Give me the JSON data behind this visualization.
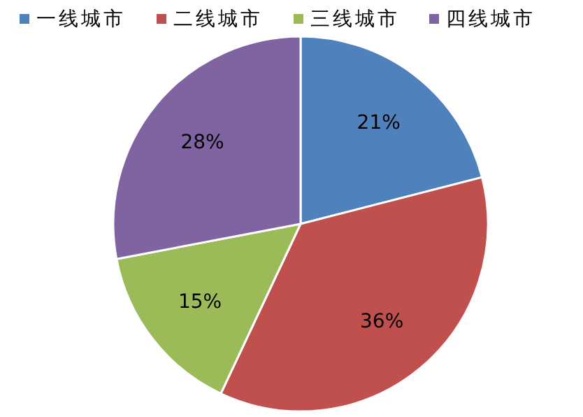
{
  "chart_data": {
    "type": "pie",
    "categories": [
      "一线城市",
      "二线城市",
      "三线城市",
      "四线城市"
    ],
    "values": [
      21,
      36,
      15,
      28
    ],
    "colors": [
      "#4f81bd",
      "#c0504d",
      "#9bbb59",
      "#8064a2"
    ],
    "value_labels": [
      "21%",
      "36%",
      "15%",
      "28%"
    ],
    "legend": "top"
  }
}
